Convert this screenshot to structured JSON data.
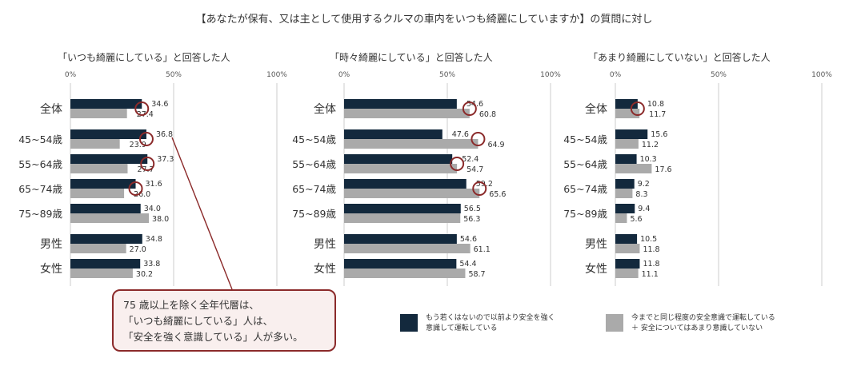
{
  "title": "【あなたが保有、又は主として使用するクルマの車内をいつも綺麗にしていますか】の質問に対し",
  "categories": [
    "全体",
    "45~54歳",
    "55~64歳",
    "65~74歳",
    "75~89歳",
    "男性",
    "女性"
  ],
  "axis": {
    "ticks": [
      "0%",
      "50%",
      "100%"
    ],
    "xlim": [
      0,
      100
    ]
  },
  "colors": {
    "series_a": "#13293d",
    "series_b": "#aaaaaa",
    "highlight": "#8b2a2a",
    "grid": "#cccccc"
  },
  "chart_data": [
    {
      "type": "bar",
      "orientation": "horizontal",
      "title": "「いつも綺麗にしている」と回答した人",
      "categories": [
        "全体",
        "45~54歳",
        "55~64歳",
        "65~74歳",
        "75~89歳",
        "男性",
        "女性"
      ],
      "series": [
        {
          "name": "もう若くはないので以前より安全を強く意識して運転している",
          "values": [
            34.6,
            36.8,
            37.3,
            31.6,
            34.0,
            34.8,
            33.8
          ]
        },
        {
          "name": "今までと同じ程度の安全意識で運転している ＋ 安全についてはあまり意識していない",
          "values": [
            27.4,
            23.9,
            27.7,
            26.0,
            38.0,
            27.0,
            30.2
          ]
        }
      ],
      "highlighted": [
        0,
        1,
        2,
        3
      ],
      "xlim": [
        0,
        100
      ]
    },
    {
      "type": "bar",
      "orientation": "horizontal",
      "title": "「時々綺麗にしている」と回答した人",
      "categories": [
        "全体",
        "45~54歳",
        "55~64歳",
        "65~74歳",
        "75~89歳",
        "男性",
        "女性"
      ],
      "series": [
        {
          "name": "もう若くはないので以前より安全を強く意識して運転している",
          "values": [
            54.6,
            47.6,
            52.4,
            59.2,
            56.5,
            54.6,
            54.4
          ]
        },
        {
          "name": "今までと同じ程度の安全意識で運転している ＋ 安全についてはあまり意識していない",
          "values": [
            60.8,
            64.9,
            54.7,
            65.6,
            56.3,
            61.1,
            58.7
          ]
        }
      ],
      "highlighted": [
        0,
        1,
        2,
        3
      ],
      "xlim": [
        0,
        100
      ]
    },
    {
      "type": "bar",
      "orientation": "horizontal",
      "title": "「あまり綺麗にしていない」と回答した人",
      "categories": [
        "全体",
        "45~54歳",
        "55~64歳",
        "65~74歳",
        "75~89歳",
        "男性",
        "女性"
      ],
      "series": [
        {
          "name": "もう若くはないので以前より安全を強く意識して運転している",
          "values": [
            10.8,
            15.6,
            10.3,
            9.2,
            9.4,
            10.5,
            11.8
          ]
        },
        {
          "name": "今までと同じ程度の安全意識で運転している ＋ 安全についてはあまり意識していない",
          "values": [
            11.7,
            11.2,
            17.6,
            8.3,
            5.6,
            11.8,
            11.1
          ]
        }
      ],
      "highlighted": [
        0
      ],
      "xlim": [
        0,
        100
      ]
    }
  ],
  "callout": {
    "line1": "75 歳以上を除く全年代層は、",
    "line2": "「いつも綺麗にしている」人は、",
    "line3": "「安全を強く意識している」人が多い。"
  },
  "legend": {
    "a_line1": "もう若くはないので以前より安全を強く",
    "a_line2": "意識して運転している",
    "b_line1": "今までと同じ程度の安全意識で運転している",
    "b_line2": "＋ 安全についてはあまり意識していない"
  }
}
